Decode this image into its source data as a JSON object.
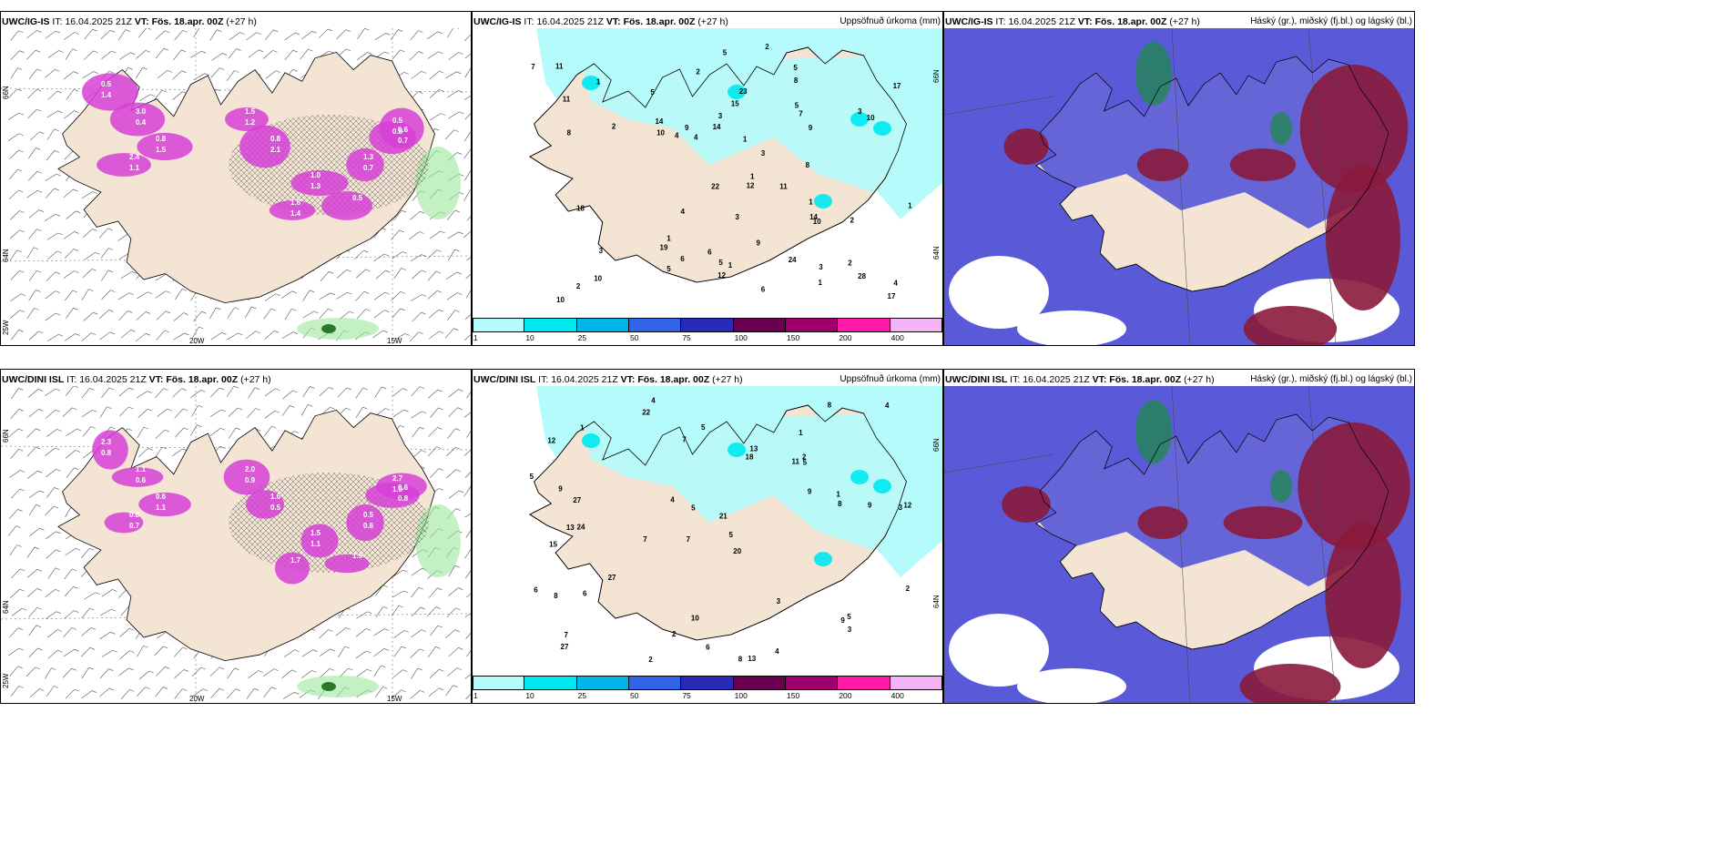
{
  "rows": [
    {
      "model": "UWC/IG-IS",
      "it_label": "IT:",
      "it_value": "16.04.2025 21Z",
      "vt_label": "VT:",
      "vt_value": "Fös. 18.apr. 00Z",
      "lead": "(+27 h)"
    },
    {
      "model": "UWC/DINI ISL",
      "it_label": "IT:",
      "it_value": "16.04.2025 21Z",
      "vt_label": "VT:",
      "vt_value": "Fös. 18.apr. 00Z",
      "lead": "(+27 h)"
    }
  ],
  "panel_titles": {
    "precip": "Uppsöfnuð úrkoma (mm)",
    "cloud": "Háský (gr.), miðský (fj.bl.) og lágský (bl.)"
  },
  "axis_labels": {
    "lat_66": "66N",
    "lat_64": "64N",
    "lon_25": "25W",
    "lon_20": "20W",
    "lon_15": "15W"
  },
  "colorbar": {
    "colors": [
      "#b5fbfb",
      "#00e8ef",
      "#00b6e8",
      "#3264e8",
      "#2a2ab8",
      "#6b0050",
      "#a0006e",
      "#ff1aa8",
      "#f5b4f5"
    ],
    "labels": [
      "1",
      "10",
      "25",
      "50",
      "75",
      "100",
      "150",
      "200",
      "400"
    ]
  },
  "colors": {
    "land": "#f3e4d3",
    "precip_light": "#b5fbfb",
    "precip_mid": "#00e8ef",
    "snow_magenta": "#d63fd6",
    "cloud_high": "#1e8a4a",
    "cloud_mid": "#8a1a3c",
    "cloud_low": "#5a5ad8"
  },
  "icons": {
    "wind_barbs": "wind-barb-icon"
  },
  "precip_values": {
    "top": [
      "2",
      "2",
      "1",
      "3",
      "2",
      "2",
      "2",
      "5",
      "3",
      "19",
      "17",
      "10",
      "6",
      "5",
      "24",
      "14",
      "14",
      "18",
      "22",
      "17",
      "7",
      "10",
      "12",
      "11",
      "10",
      "8",
      "9",
      "15",
      "10",
      "9",
      "28",
      "4",
      "23",
      "10",
      "12",
      "6",
      "5",
      "9",
      "8",
      "6",
      "2",
      "1",
      "5",
      "5",
      "8",
      "4",
      "3",
      "1",
      "1",
      "4",
      "11",
      "14",
      "11",
      "1",
      "3",
      "1",
      "3",
      "4",
      "3",
      "1",
      "1",
      "5",
      "7"
    ],
    "bottom": [
      "4",
      "1",
      "3",
      "7",
      "20",
      "24",
      "12",
      "11",
      "15",
      "18",
      "21",
      "27",
      "22",
      "7",
      "8",
      "13",
      "10",
      "8",
      "9",
      "27",
      "27",
      "13",
      "12",
      "9",
      "6",
      "9",
      "5",
      "8",
      "5",
      "8",
      "9",
      "13",
      "6",
      "4",
      "3",
      "2",
      "1",
      "2",
      "4",
      "5",
      "7",
      "2",
      "4",
      "1",
      "6",
      "5",
      "3",
      "2",
      "5",
      "5",
      "7"
    ]
  },
  "snow_values": {
    "top": [
      "0.5",
      "3.0",
      "2.4",
      "0.8",
      "1.5",
      "0.8",
      "1.0",
      "1.3",
      "0.6",
      "0.5",
      "1.6",
      "0.5",
      "1.4",
      "0.4",
      "1.1",
      "1.5",
      "1.2",
      "2.1",
      "1.3",
      "0.7",
      "0.7",
      "0.8",
      "1.4"
    ],
    "bottom": [
      "2.3",
      "1.1",
      "0.8",
      "0.6",
      "2.0",
      "1.6",
      "1.5",
      "0.5",
      "0.6",
      "2.7",
      "1.7",
      "1.9",
      "0.8",
      "0.6",
      "0.7",
      "1.1",
      "0.9",
      "0.5",
      "1.1",
      "0.6",
      "0.8",
      "1.0"
    ]
  }
}
